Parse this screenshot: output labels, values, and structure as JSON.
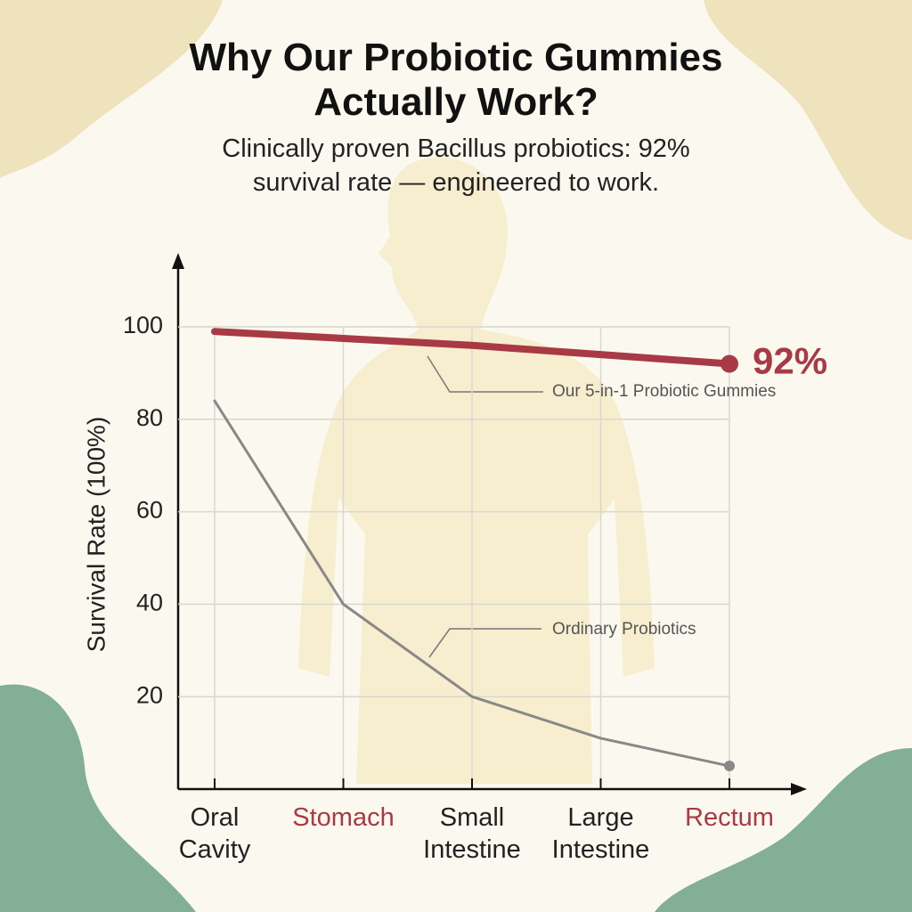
{
  "chart_data": {
    "type": "line",
    "title": "Why Our Probiotic Gummies Actually Work?",
    "subtitle": "Clinically proven Bacillus probiotics: 92% survival rate — engineered to work.",
    "y_label": "Survival Rate (100%)",
    "categories": [
      "Oral Cavity",
      "Stomach",
      "Small Intestine",
      "Large Intestine",
      "Rectum"
    ],
    "category_colors": [
      "#222222",
      "#a83a45",
      "#222222",
      "#222222",
      "#a83a45"
    ],
    "series": [
      {
        "name": "Our 5-in-1 Probiotic Gummies",
        "color": "#a83a45",
        "values": [
          99,
          97.5,
          96,
          94,
          92
        ],
        "value_labels": [
          null,
          null,
          null,
          null,
          "92%"
        ]
      },
      {
        "name": "Ordinary Probiotics",
        "color": "#888888",
        "values": [
          84,
          40,
          20,
          11,
          5
        ]
      }
    ],
    "ylim": [
      0,
      100
    ],
    "yticks": [
      20,
      40,
      60,
      80,
      100
    ],
    "grid": true
  }
}
